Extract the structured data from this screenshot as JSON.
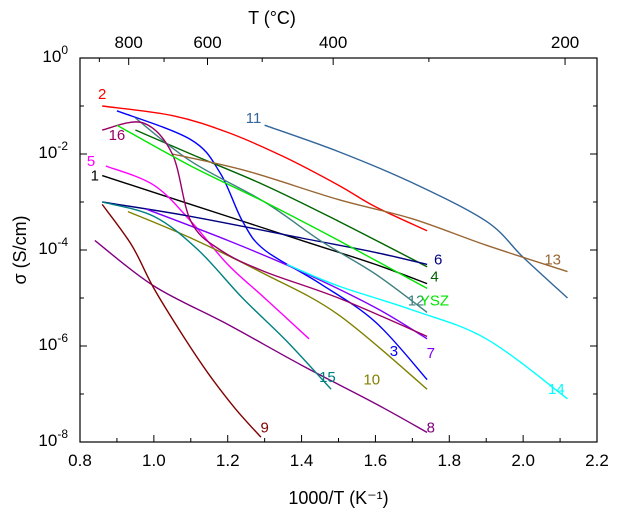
{
  "chart_data": {
    "type": "line",
    "xlabel": "1000/T (K⁻¹)",
    "ylabel": "σ (S/cm)",
    "top_xlabel": "T (°C)",
    "xlim": [
      0.8,
      2.2
    ],
    "ylim_log10": [
      -8,
      0
    ],
    "y_scale": "log",
    "x_ticks": [
      "0.8",
      "1.0",
      "1.2",
      "1.4",
      "1.6",
      "1.8",
      "2.0",
      "2.2"
    ],
    "y_ticks": [
      {
        "base": "10",
        "exp": "-8"
      },
      {
        "base": "10",
        "exp": "-6"
      },
      {
        "base": "10",
        "exp": "-4"
      },
      {
        "base": "10",
        "exp": "-2"
      },
      {
        "base": "10",
        "exp": "0"
      }
    ],
    "top_ticks": [
      "800",
      "600",
      "400",
      "200"
    ],
    "top_tick_celsius": [
      800,
      600,
      400,
      200
    ],
    "grid": false,
    "legend": "inline labels",
    "series": [
      {
        "name": "1",
        "color": "#000000",
        "points": [
          [
            0.86,
            -2.45
          ],
          [
            1.1,
            -3.05
          ],
          [
            1.4,
            -3.8
          ],
          [
            1.6,
            -4.3
          ],
          [
            1.74,
            -4.7
          ]
        ],
        "label_at": [
          0.84,
          -2.45
        ]
      },
      {
        "name": "2",
        "color": "#ff0000",
        "points": [
          [
            0.86,
            -1.0
          ],
          [
            1.05,
            -1.2
          ],
          [
            1.2,
            -1.55
          ],
          [
            1.35,
            -2.05
          ],
          [
            1.5,
            -2.65
          ],
          [
            1.6,
            -3.1
          ],
          [
            1.74,
            -3.6
          ]
        ],
        "label_at": [
          0.86,
          -0.75
        ]
      },
      {
        "name": "3",
        "color": "#0000ff",
        "points": [
          [
            0.9,
            -1.1
          ],
          [
            1.1,
            -1.7
          ],
          [
            1.18,
            -2.4
          ],
          [
            1.24,
            -3.4
          ],
          [
            1.3,
            -4.0
          ],
          [
            1.45,
            -4.7
          ],
          [
            1.6,
            -5.5
          ],
          [
            1.74,
            -6.7
          ]
        ],
        "label_at": [
          1.65,
          -6.1
        ]
      },
      {
        "name": "4",
        "color": "#006400",
        "points": [
          [
            0.95,
            -1.5
          ],
          [
            1.1,
            -2.0
          ],
          [
            1.3,
            -2.65
          ],
          [
            1.5,
            -3.4
          ],
          [
            1.74,
            -4.35
          ]
        ],
        "label_at": [
          1.76,
          -4.55
        ]
      },
      {
        "name": "5",
        "color": "#ff00ff",
        "points": [
          [
            0.87,
            -2.25
          ],
          [
            1.0,
            -2.65
          ],
          [
            1.1,
            -3.4
          ],
          [
            1.2,
            -4.3
          ],
          [
            1.3,
            -5.0
          ],
          [
            1.42,
            -5.85
          ]
        ],
        "label_at": [
          0.83,
          -2.15
        ]
      },
      {
        "name": "6",
        "color": "#000080",
        "points": [
          [
            0.86,
            -3.0
          ],
          [
            1.1,
            -3.3
          ],
          [
            1.4,
            -3.75
          ],
          [
            1.6,
            -4.05
          ],
          [
            1.74,
            -4.3
          ]
        ],
        "label_at": [
          1.77,
          -4.2
        ]
      },
      {
        "name": "7",
        "color": "#8000ff",
        "points": [
          [
            0.98,
            -3.15
          ],
          [
            1.2,
            -3.8
          ],
          [
            1.4,
            -4.45
          ],
          [
            1.6,
            -5.2
          ],
          [
            1.74,
            -5.85
          ]
        ],
        "label_at": [
          1.75,
          -6.15
        ]
      },
      {
        "name": "8",
        "color": "#800080",
        "points": [
          [
            0.84,
            -3.8
          ],
          [
            1.0,
            -4.75
          ],
          [
            1.2,
            -5.55
          ],
          [
            1.4,
            -6.4
          ],
          [
            1.6,
            -7.2
          ],
          [
            1.74,
            -7.8
          ]
        ],
        "label_at": [
          1.75,
          -7.7
        ]
      },
      {
        "name": "9",
        "color": "#800000",
        "points": [
          [
            0.86,
            -3.05
          ],
          [
            0.94,
            -3.9
          ],
          [
            1.0,
            -4.8
          ],
          [
            1.08,
            -5.8
          ],
          [
            1.15,
            -6.6
          ],
          [
            1.22,
            -7.3
          ],
          [
            1.29,
            -7.9
          ]
        ],
        "label_at": [
          1.3,
          -7.7
        ]
      },
      {
        "name": "10",
        "color": "#808000",
        "points": [
          [
            0.93,
            -3.2
          ],
          [
            1.1,
            -3.75
          ],
          [
            1.3,
            -4.5
          ],
          [
            1.5,
            -5.35
          ],
          [
            1.74,
            -6.9
          ]
        ],
        "label_at": [
          1.59,
          -6.7
        ]
      },
      {
        "name": "11",
        "color": "#336699",
        "points": [
          [
            1.3,
            -1.4
          ],
          [
            1.5,
            -1.95
          ],
          [
            1.7,
            -2.6
          ],
          [
            1.9,
            -3.4
          ],
          [
            2.0,
            -4.15
          ],
          [
            2.12,
            -5.0
          ]
        ],
        "label_at": [
          1.27,
          -1.25
        ]
      },
      {
        "name": "12",
        "color": "#408080",
        "points": [
          [
            0.95,
            -1.25
          ],
          [
            1.1,
            -2.15
          ],
          [
            1.3,
            -3.0
          ],
          [
            1.45,
            -3.8
          ],
          [
            1.6,
            -4.5
          ],
          [
            1.74,
            -5.3
          ]
        ],
        "label_at": [
          1.71,
          -5.05
        ]
      },
      {
        "name": "13",
        "color": "#996633",
        "points": [
          [
            1.05,
            -2.0
          ],
          [
            1.25,
            -2.35
          ],
          [
            1.5,
            -2.95
          ],
          [
            1.7,
            -3.35
          ],
          [
            1.9,
            -3.9
          ],
          [
            2.12,
            -4.45
          ]
        ],
        "label_at": [
          2.08,
          -4.2
        ]
      },
      {
        "name": "14",
        "color": "#00ffff",
        "points": [
          [
            1.36,
            -4.3
          ],
          [
            1.5,
            -4.75
          ],
          [
            1.7,
            -5.25
          ],
          [
            1.9,
            -5.85
          ],
          [
            2.12,
            -7.1
          ]
        ],
        "label_at": [
          2.09,
          -6.9
        ]
      },
      {
        "name": "15",
        "color": "#008080",
        "points": [
          [
            0.86,
            -3.0
          ],
          [
            1.0,
            -3.3
          ],
          [
            1.12,
            -4.0
          ],
          [
            1.24,
            -5.0
          ],
          [
            1.36,
            -5.9
          ],
          [
            1.48,
            -6.9
          ]
        ],
        "label_at": [
          1.47,
          -6.65
        ]
      },
      {
        "name": "16",
        "color": "#990066",
        "points": [
          [
            0.86,
            -1.5
          ],
          [
            0.97,
            -1.35
          ],
          [
            1.05,
            -2.0
          ],
          [
            1.1,
            -3.4
          ],
          [
            1.18,
            -4.0
          ],
          [
            1.3,
            -4.45
          ],
          [
            1.5,
            -5.0
          ],
          [
            1.74,
            -5.8
          ]
        ],
        "label_at": [
          0.9,
          -1.6
        ]
      },
      {
        "name": "YSZ",
        "color": "#00e600",
        "points": [
          [
            0.9,
            -1.4
          ],
          [
            1.1,
            -2.25
          ],
          [
            1.3,
            -3.0
          ],
          [
            1.5,
            -3.8
          ],
          [
            1.74,
            -4.8
          ]
        ],
        "label_at": [
          1.76,
          -5.05
        ]
      }
    ]
  }
}
